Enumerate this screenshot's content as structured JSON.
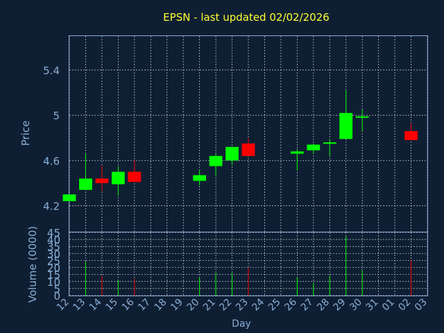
{
  "chart_data": {
    "type": "candlestick",
    "title": "EPSN - last updated 02/02/2026",
    "xlabel": "Day",
    "price_panel": {
      "ylabel": "Price",
      "ylim": [
        3.97,
        5.7
      ],
      "yticks": [
        4.2,
        4.6,
        5,
        5.4
      ],
      "ytick_labels": [
        "4.2",
        "4.6",
        "5",
        "5.4"
      ]
    },
    "volume_panel": {
      "ylabel": "Volume (0000)",
      "ylim": [
        0,
        45
      ],
      "yticks": [
        0,
        5,
        10,
        15,
        20,
        25,
        30,
        35,
        40,
        45
      ],
      "ytick_labels": [
        "0",
        "5",
        "10",
        "15",
        "20",
        "25",
        "30",
        "35",
        "40",
        "45"
      ]
    },
    "x_tick_labels": [
      "12",
      "13",
      "14",
      "15",
      "16",
      "17",
      "18",
      "19",
      "20",
      "21",
      "22",
      "23",
      "24",
      "25",
      "26",
      "27",
      "28",
      "29",
      "30",
      "31",
      "01",
      "02",
      "03"
    ],
    "grid": true,
    "colors": {
      "up": "#00ff00",
      "down": "#ff0000",
      "background": "#0f1f33",
      "text": "#8aaed6",
      "title": "#ffff33"
    },
    "candles": [
      {
        "day": "12",
        "open": 4.24,
        "high": 4.3,
        "low": 4.24,
        "close": 4.3,
        "volume": 0
      },
      {
        "day": "13",
        "open": 4.34,
        "high": 4.66,
        "low": 4.34,
        "close": 4.44,
        "volume": 24
      },
      {
        "day": "14",
        "open": 4.44,
        "high": 4.55,
        "low": 4.33,
        "close": 4.4,
        "volume": 14
      },
      {
        "day": "15",
        "open": 4.39,
        "high": 4.55,
        "low": 4.29,
        "close": 4.5,
        "volume": 11
      },
      {
        "day": "16",
        "open": 4.5,
        "high": 4.6,
        "low": 4.41,
        "close": 4.41,
        "volume": 12
      },
      {
        "day": "20",
        "open": 4.42,
        "high": 4.52,
        "low": 4.38,
        "close": 4.47,
        "volume": 13
      },
      {
        "day": "21",
        "open": 4.55,
        "high": 4.66,
        "low": 4.47,
        "close": 4.64,
        "volume": 16
      },
      {
        "day": "22",
        "open": 4.6,
        "high": 4.72,
        "low": 4.56,
        "close": 4.72,
        "volume": 16
      },
      {
        "day": "23",
        "open": 4.75,
        "high": 4.8,
        "low": 4.64,
        "close": 4.64,
        "volume": 20
      },
      {
        "day": "26",
        "open": 4.66,
        "high": 4.7,
        "low": 4.51,
        "close": 4.68,
        "volume": 13
      },
      {
        "day": "27",
        "open": 4.69,
        "high": 4.75,
        "low": 4.66,
        "close": 4.74,
        "volume": 9
      },
      {
        "day": "28",
        "open": 4.75,
        "high": 4.79,
        "low": 4.64,
        "close": 4.76,
        "volume": 14
      },
      {
        "day": "29",
        "open": 4.79,
        "high": 5.22,
        "low": 4.79,
        "close": 5.02,
        "volume": 42
      },
      {
        "day": "30",
        "open": 4.98,
        "high": 5.05,
        "low": 4.86,
        "close": 4.99,
        "volume": 18
      },
      {
        "day": "02",
        "open": 4.86,
        "high": 4.93,
        "low": 4.78,
        "close": 4.78,
        "volume": 25
      }
    ]
  }
}
